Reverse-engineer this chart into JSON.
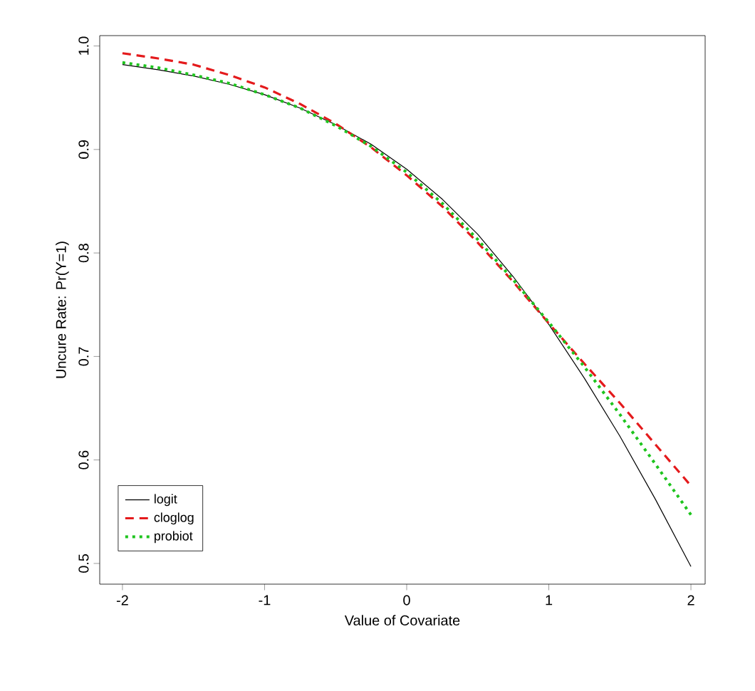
{
  "chart_data": {
    "type": "line",
    "xlabel": "Value of Covariate",
    "ylabel": "Uncure Rate: Pr(Y=1)",
    "x": [
      -2,
      -1.75,
      -1.5,
      -1.25,
      -1,
      -0.75,
      -0.5,
      -0.25,
      0,
      0.25,
      0.5,
      0.75,
      1,
      1.25,
      1.5,
      1.75,
      2
    ],
    "series": [
      {
        "name": "logit",
        "color": "#000000",
        "line_style": "solid",
        "values": [
          0.982,
          0.977,
          0.971,
          0.963,
          0.953,
          0.94,
          0.924,
          0.905,
          0.881,
          0.852,
          0.818,
          0.777,
          0.731,
          0.679,
          0.623,
          0.562,
          0.497
        ]
      },
      {
        "name": "cloglog",
        "color": "#e41a1c",
        "line_style": "dashed",
        "values": [
          0.993,
          0.988,
          0.982,
          0.972,
          0.96,
          0.944,
          0.925,
          0.902,
          0.875,
          0.845,
          0.81,
          0.772,
          0.732,
          0.693,
          0.655,
          0.615,
          0.575
        ]
      },
      {
        "name": "probiot",
        "color": "#1ec41e",
        "line_style": "dotted",
        "values": [
          0.984,
          0.979,
          0.972,
          0.964,
          0.953,
          0.94,
          0.923,
          0.903,
          0.878,
          0.848,
          0.813,
          0.774,
          0.733,
          0.69,
          0.644,
          0.596,
          0.547
        ]
      }
    ],
    "xlim": [
      -2.16,
      2.1
    ],
    "ylim": [
      0.48,
      1.01
    ],
    "xticks": [
      {
        "value": -2,
        "label": "-2"
      },
      {
        "value": -1,
        "label": "-1"
      },
      {
        "value": 0,
        "label": "0"
      },
      {
        "value": 1,
        "label": "1"
      },
      {
        "value": 2,
        "label": "2"
      }
    ],
    "yticks": [
      {
        "value": 0.5,
        "label": "0.5"
      },
      {
        "value": 0.6,
        "label": "0.6"
      },
      {
        "value": 0.7,
        "label": "0.7"
      },
      {
        "value": 0.8,
        "label": "0.8"
      },
      {
        "value": 0.9,
        "label": "0.9"
      },
      {
        "value": 1.0,
        "label": "1.0"
      }
    ],
    "legend": "bottom left",
    "grid": false
  }
}
